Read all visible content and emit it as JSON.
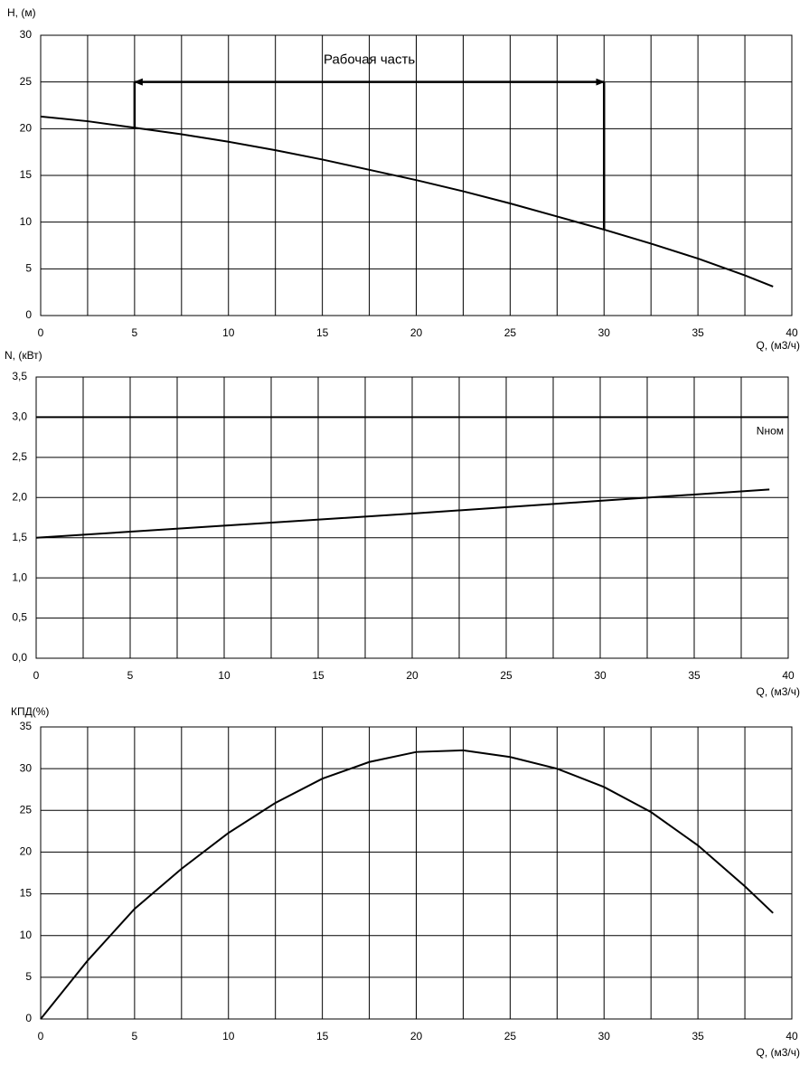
{
  "chart_data": [
    {
      "type": "line",
      "ylabel": "H, (м)",
      "xlabel": "Q, (м3/ч)",
      "xlim": [
        0,
        40
      ],
      "ylim": [
        0,
        30
      ],
      "xticks": [
        0,
        5,
        10,
        15,
        20,
        25,
        30,
        35,
        40
      ],
      "x_minor_ticks": [
        2.5,
        7.5,
        12.5,
        17.5,
        22.5,
        27.5,
        32.5,
        37.5
      ],
      "yticks": [
        0,
        5,
        10,
        15,
        20,
        25,
        30
      ],
      "grid": true,
      "x": [
        0,
        2.5,
        5,
        7.5,
        10,
        12.5,
        15,
        17.5,
        20,
        22.5,
        25,
        27.5,
        30,
        32.5,
        35,
        37.5,
        39
      ],
      "series": [
        {
          "color": "#000000",
          "values": [
            21.3,
            20.8,
            20.1,
            19.4,
            18.6,
            17.7,
            16.7,
            15.6,
            14.5,
            13.3,
            12.0,
            10.6,
            9.2,
            7.7,
            6.1,
            4.3,
            3.1
          ]
        }
      ],
      "annotation": {
        "text": "Рабочая часть",
        "x": [
          5,
          30
        ],
        "y": 25
      }
    },
    {
      "type": "line",
      "ylabel": "N, (кВт)",
      "xlabel": "Q, (м3/ч)",
      "xlim": [
        0,
        40
      ],
      "ylim": [
        0,
        3.5
      ],
      "xticks": [
        0,
        5,
        10,
        15,
        20,
        25,
        30,
        35,
        40
      ],
      "x_minor_ticks": [
        2.5,
        7.5,
        12.5,
        17.5,
        22.5,
        27.5,
        32.5,
        37.5
      ],
      "yticks": [
        {
          "value": 0,
          "label": "0,0"
        },
        {
          "value": 0.5,
          "label": "0,5"
        },
        {
          "value": 1,
          "label": "1,0"
        },
        {
          "value": 1.5,
          "label": "1,5"
        },
        {
          "value": 2,
          "label": "2,0"
        },
        {
          "value": 2.5,
          "label": "2,5"
        },
        {
          "value": 3,
          "label": "3,0"
        },
        {
          "value": 3.5,
          "label": "3,5"
        }
      ],
      "grid": true,
      "x": [
        0,
        10,
        20,
        30,
        39
      ],
      "series": [
        {
          "color": "#000000",
          "values": [
            1.5,
            1.65,
            1.8,
            1.96,
            2.1
          ]
        }
      ],
      "hline": {
        "value": 3,
        "label": "Nном"
      }
    },
    {
      "type": "line",
      "ylabel": "КПД(%)",
      "xlabel": "Q, (м3/ч)",
      "xlim": [
        0,
        40
      ],
      "ylim": [
        0,
        35
      ],
      "xticks": [
        0,
        5,
        10,
        15,
        20,
        25,
        30,
        35,
        40
      ],
      "x_minor_ticks": [
        2.5,
        7.5,
        12.5,
        17.5,
        22.5,
        27.5,
        32.5,
        37.5
      ],
      "yticks": [
        0,
        5,
        10,
        15,
        20,
        25,
        30,
        35
      ],
      "grid": true,
      "x": [
        0,
        2.5,
        5,
        7.5,
        10,
        12.5,
        15,
        17.5,
        20,
        22.5,
        25,
        27.5,
        30,
        32.5,
        35,
        37.5,
        39
      ],
      "series": [
        {
          "color": "#000000",
          "values": [
            0,
            7,
            13.2,
            18,
            22.3,
            25.9,
            28.8,
            30.8,
            32,
            32.2,
            31.4,
            30,
            27.8,
            24.8,
            20.8,
            15.9,
            12.7
          ]
        }
      ]
    }
  ]
}
